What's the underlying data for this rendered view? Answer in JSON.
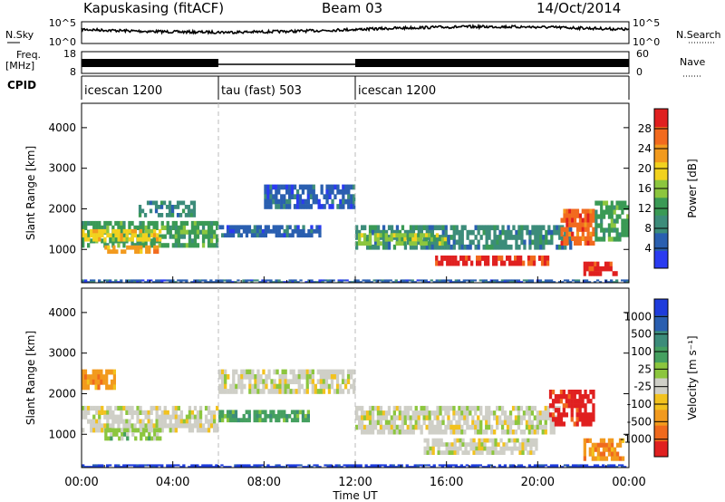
{
  "header": {
    "station": "Kapuskasing (fitACF)",
    "beam": "Beam 03",
    "date": "14/Oct/2014"
  },
  "colors": {
    "power_scale": [
      "#2a3bf0",
      "#2a5fb0",
      "#3c8c7a",
      "#3a9a55",
      "#8cc63e",
      "#f2d21e",
      "#f29a1e",
      "#f26a1e",
      "#e02020"
    ],
    "velocity_scale": [
      "#1e3cdc",
      "#2a5fb0",
      "#3c8c7a",
      "#45a060",
      "#8cc63e",
      "#cfcfc7",
      "#f2c21e",
      "#f29a1e",
      "#f06a1e",
      "#e02020"
    ]
  },
  "chart_data": [
    {
      "type": "line",
      "name": "noise-panel",
      "left_label": "N.Sky",
      "right_label": "N.Search",
      "left_ticks": [
        "10^5",
        "10^0"
      ],
      "right_ticks": [
        "10^5",
        "10^0"
      ]
    },
    {
      "type": "line",
      "name": "freq-panel",
      "left_label": "Freq.",
      "left_unit": "[MHz]",
      "right_label": "Nave",
      "left_ticks": [
        "18",
        "8"
      ],
      "right_ticks": [
        "60",
        "0"
      ],
      "segments": [
        {
          "start_hour": 0.0,
          "end_hour": 6.0,
          "active": true
        },
        {
          "start_hour": 6.0,
          "end_hour": 12.0,
          "active": false
        },
        {
          "start_hour": 12.0,
          "end_hour": 24.0,
          "active": true
        }
      ]
    },
    {
      "type": "table",
      "name": "cpid-panel",
      "label": "CPID",
      "programs": [
        {
          "start_hour": 0.0,
          "label": "icescan 1200"
        },
        {
          "start_hour": 6.0,
          "label": "tau (fast) 503"
        },
        {
          "start_hour": 12.0,
          "label": "icescan 1200"
        }
      ]
    },
    {
      "type": "heatmap",
      "name": "power-panel",
      "ylabel": "Slant Range [km]",
      "y_ticks": [
        "1000",
        "2000",
        "3000",
        "4000"
      ],
      "ylim": [
        180,
        4600
      ],
      "xlim": [
        0,
        24
      ],
      "colorbar_label": "Power [dB]",
      "colorbar_ticks": [
        "4",
        "8",
        "12",
        "16",
        "20",
        "24",
        "28"
      ],
      "bands": [
        {
          "t0": 0.0,
          "t1": 6.0,
          "r0": 1050,
          "r1": 1700,
          "c": 3
        },
        {
          "t0": 0.0,
          "t1": 3.5,
          "r0": 1200,
          "r1": 1500,
          "c": 5
        },
        {
          "t0": 1.0,
          "t1": 3.5,
          "r0": 900,
          "r1": 1100,
          "c": 6
        },
        {
          "t0": 2.5,
          "t1": 5.0,
          "r0": 1800,
          "r1": 2200,
          "c": 2
        },
        {
          "t0": 6.0,
          "t1": 10.5,
          "r0": 1300,
          "r1": 1600,
          "c": 1
        },
        {
          "t0": 8.0,
          "t1": 12.0,
          "r0": 2000,
          "r1": 2600,
          "c": 1
        },
        {
          "t0": 12.0,
          "t1": 21.5,
          "r0": 1000,
          "r1": 1600,
          "c": 2
        },
        {
          "t0": 12.0,
          "t1": 16.0,
          "r0": 1100,
          "r1": 1400,
          "c": 4
        },
        {
          "t0": 15.5,
          "t1": 20.5,
          "r0": 600,
          "r1": 850,
          "c": 8
        },
        {
          "t0": 21.0,
          "t1": 22.5,
          "r0": 1100,
          "r1": 2000,
          "c": 7
        },
        {
          "t0": 22.0,
          "t1": 23.5,
          "r0": 350,
          "r1": 700,
          "c": 8
        },
        {
          "t0": 22.5,
          "t1": 24.0,
          "r0": 1200,
          "r1": 2200,
          "c": 3
        },
        {
          "t0": 0.0,
          "t1": 24.0,
          "r0": 180,
          "r1": 260,
          "c": 1
        }
      ]
    },
    {
      "type": "heatmap",
      "name": "velocity-panel",
      "ylabel": "Slant Range [km]",
      "y_ticks": [
        "1000",
        "2000",
        "3000",
        "4000"
      ],
      "ylim": [
        180,
        4600
      ],
      "xlim": [
        0,
        24
      ],
      "xlabel": "Time UT",
      "x_ticks": [
        "00:00",
        "04:00",
        "08:00",
        "12:00",
        "16:00",
        "20:00",
        "00:00"
      ],
      "colorbar_label": "Velocity [m s⁻¹]",
      "colorbar_ticks": [
        "1000",
        "500",
        "100",
        "25",
        "-25",
        "-100",
        "-500",
        "-1000"
      ],
      "bands": [
        {
          "t0": 0.0,
          "t1": 6.0,
          "r0": 1050,
          "r1": 1700,
          "c": 5
        },
        {
          "t0": 1.0,
          "t1": 3.5,
          "r0": 850,
          "r1": 1150,
          "c": 4
        },
        {
          "t0": 0.0,
          "t1": 1.5,
          "r0": 2100,
          "r1": 2600,
          "c": 7
        },
        {
          "t0": 6.0,
          "t1": 12.0,
          "r0": 2000,
          "r1": 2600,
          "c": 5
        },
        {
          "t0": 6.0,
          "t1": 10.0,
          "r0": 1300,
          "r1": 1600,
          "c": 3
        },
        {
          "t0": 12.0,
          "t1": 21.0,
          "r0": 1000,
          "r1": 1700,
          "c": 5
        },
        {
          "t0": 15.0,
          "t1": 20.0,
          "r0": 500,
          "r1": 900,
          "c": 5
        },
        {
          "t0": 20.5,
          "t1": 22.5,
          "r0": 1200,
          "r1": 2100,
          "c": 9
        },
        {
          "t0": 22.0,
          "t1": 23.8,
          "r0": 350,
          "r1": 900,
          "c": 7
        },
        {
          "t0": 0.0,
          "t1": 24.0,
          "r0": 180,
          "r1": 260,
          "c": 0
        }
      ]
    }
  ]
}
